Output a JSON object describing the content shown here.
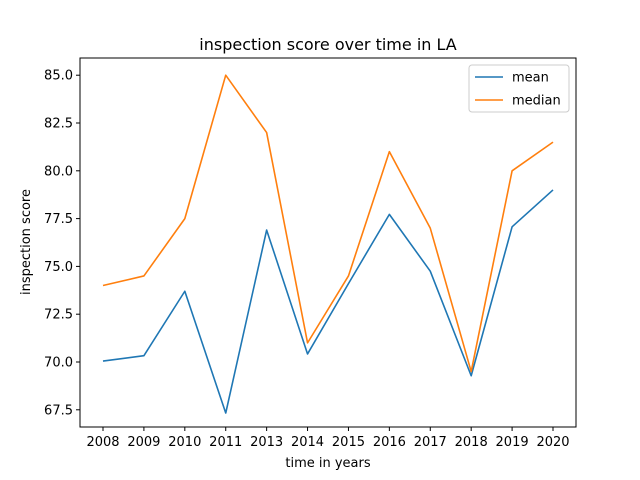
{
  "chart_data": {
    "type": "line",
    "title": "inspection score over time in LA",
    "xlabel": "time in years",
    "ylabel": "inspection score",
    "categories": [
      "2008",
      "2009",
      "2010",
      "2011",
      "2013",
      "2014",
      "2015",
      "2016",
      "2017",
      "2018",
      "2019",
      "2020"
    ],
    "ylim": [
      66.6,
      85.9
    ],
    "yticks": [
      "67.5",
      "70.0",
      "72.5",
      "75.0",
      "77.5",
      "80.0",
      "82.5",
      "85.0"
    ],
    "grid": false,
    "legend_position": "top-right",
    "series": [
      {
        "name": "mean",
        "color": "#1f77b4",
        "values": [
          70.05,
          70.33,
          73.7,
          67.33,
          76.9,
          70.42,
          74.1,
          77.72,
          74.75,
          69.28,
          77.07,
          79.0
        ]
      },
      {
        "name": "median",
        "color": "#ff7f0e",
        "values": [
          74.0,
          74.5,
          77.5,
          85.0,
          82.0,
          71.0,
          74.5,
          81.0,
          77.0,
          69.5,
          80.0,
          81.5
        ]
      }
    ]
  }
}
